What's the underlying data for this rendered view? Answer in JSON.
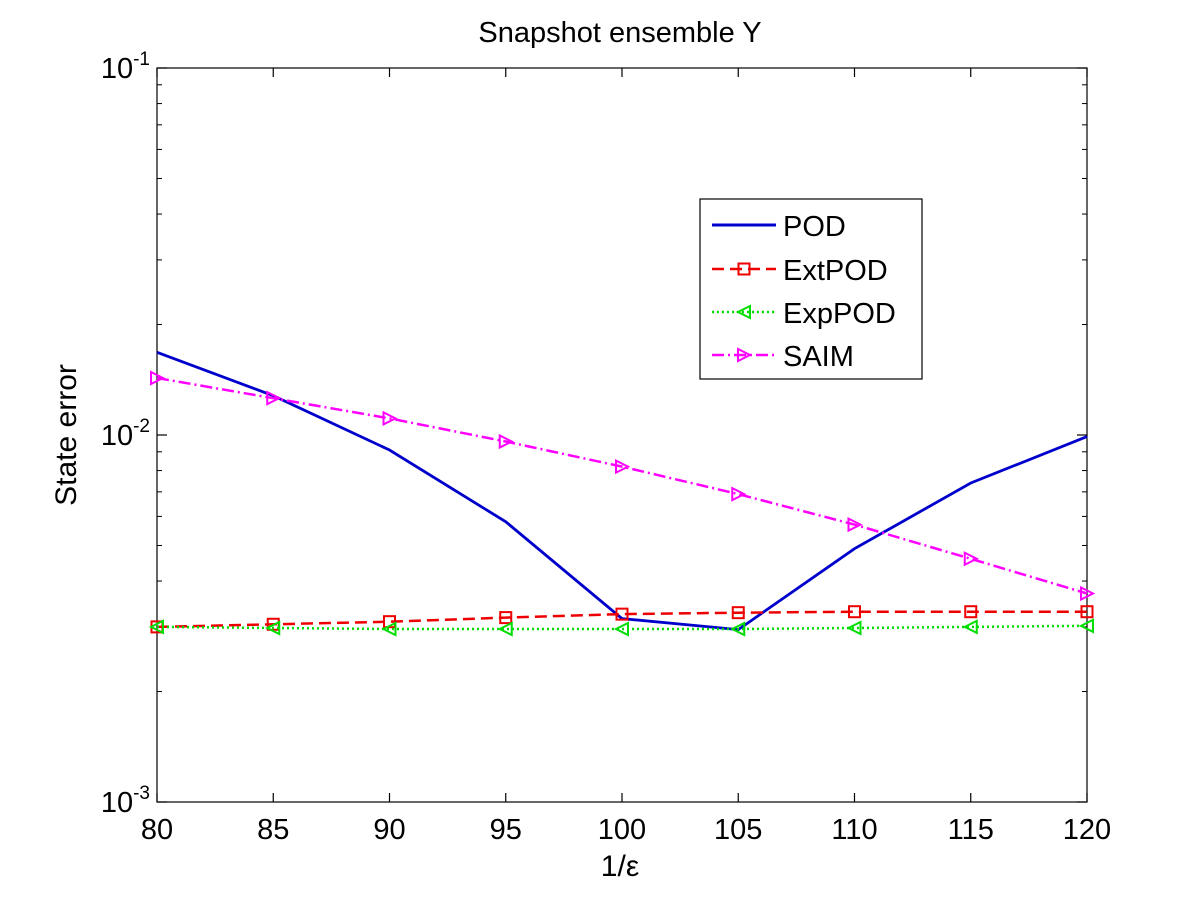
{
  "chart_data": {
    "type": "line",
    "title": "Snapshot ensemble Y",
    "xlabel": "1/ε",
    "ylabel": "State error",
    "xscale": "linear",
    "yscale": "log",
    "xlim": [
      80,
      120
    ],
    "ylim": [
      0.001,
      0.1
    ],
    "grid": false,
    "legend_position": "upper-right",
    "x": [
      80,
      85,
      90,
      95,
      100,
      105,
      110,
      115,
      120
    ],
    "xticks": [
      "80",
      "85",
      "90",
      "95",
      "100",
      "105",
      "110",
      "115",
      "120"
    ],
    "yticks": [
      {
        "value": 0.001,
        "base": "10",
        "exp": "-3"
      },
      {
        "value": 0.01,
        "base": "10",
        "exp": "-2"
      },
      {
        "value": 0.1,
        "base": "10",
        "exp": "-1"
      }
    ],
    "series": [
      {
        "name": "POD",
        "color": "#0000cc",
        "dash": "",
        "marker": "none",
        "values": [
          0.0168,
          0.0128,
          0.0091,
          0.0058,
          0.00316,
          0.00295,
          0.0049,
          0.0074,
          0.0099
        ]
      },
      {
        "name": "ExtPOD",
        "color": "#ee0000",
        "dash": "12,6",
        "marker": "square",
        "values": [
          0.003,
          0.00305,
          0.0031,
          0.00318,
          0.00325,
          0.00328,
          0.0033,
          0.0033,
          0.0033
        ]
      },
      {
        "name": "ExpPOD",
        "color": "#00dd00",
        "dash": "2,3",
        "marker": "triangle-left",
        "values": [
          0.003,
          0.00298,
          0.00296,
          0.00296,
          0.00296,
          0.00296,
          0.00298,
          0.003,
          0.00302
        ]
      },
      {
        "name": "SAIM",
        "color": "#ff00ff",
        "dash": "12,4,2,4",
        "marker": "triangle-right",
        "values": [
          0.0143,
          0.0126,
          0.0111,
          0.0096,
          0.0082,
          0.0069,
          0.0057,
          0.0046,
          0.0037
        ]
      }
    ]
  }
}
